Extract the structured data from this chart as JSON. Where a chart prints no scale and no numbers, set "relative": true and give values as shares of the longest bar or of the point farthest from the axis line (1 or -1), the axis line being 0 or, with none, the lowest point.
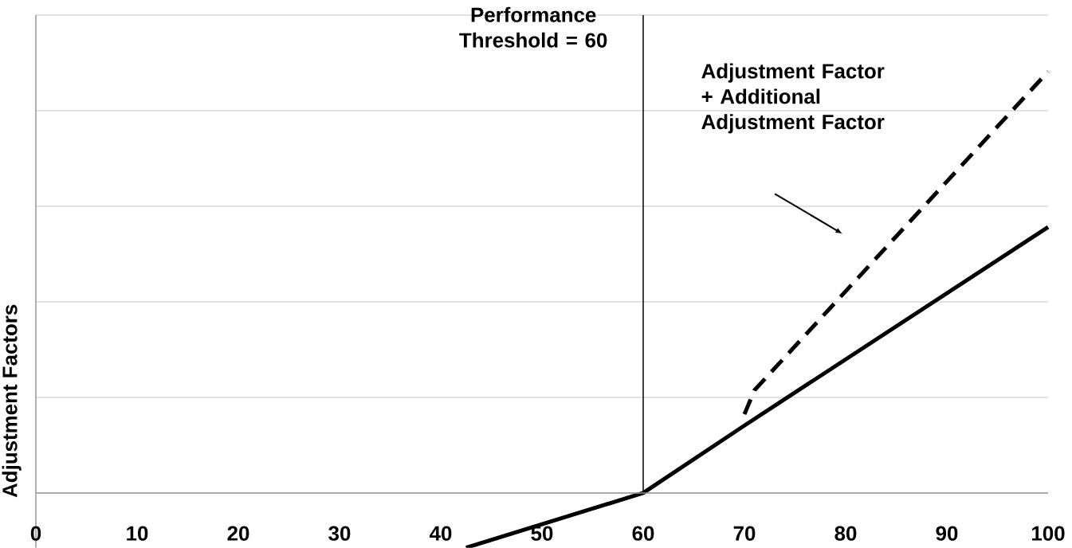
{
  "chart_data": {
    "type": "line",
    "relative": true,
    "ylabel": "Adjustment Factors",
    "xlim": [
      0,
      100
    ],
    "xticks": [
      0,
      10,
      20,
      30,
      40,
      50,
      60,
      70,
      80,
      90,
      100
    ],
    "grid": "y",
    "series": [
      {
        "color": "#000000",
        "line_style": "solid",
        "x": [
          42.5,
          60,
          70,
          100
        ],
        "values": [
          -0.13,
          0,
          0.16,
          0.631
        ]
      },
      {
        "color": "#000000",
        "line_style": "dashed",
        "x": [
          70,
          71,
          100
        ],
        "values": [
          0.187,
          0.244,
          1
        ]
      }
    ],
    "ref_lines": [
      {
        "axis": "x",
        "value": 60,
        "label": "Performance Threshold = 60",
        "color": "#000000"
      }
    ],
    "annotations": [
      "Adjustment Factor + Additional Adjustment Factor"
    ]
  }
}
